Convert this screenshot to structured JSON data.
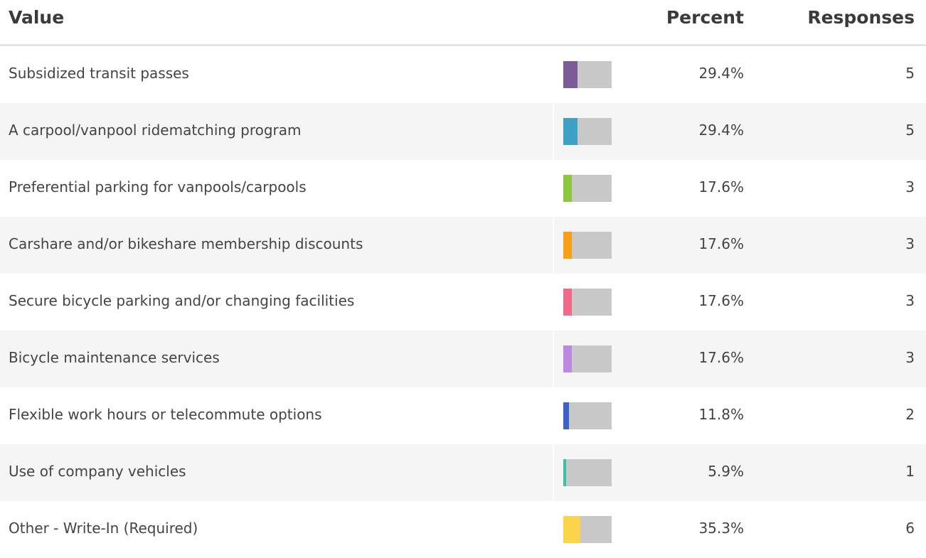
{
  "table": {
    "header": [
      "Value",
      "Percent",
      "Responses"
    ],
    "rows": [
      {
        "label": "Subsidized transit passes",
        "percent": 29.4,
        "percent_label": "29.4%",
        "responses": 5,
        "color": "#7b5c96"
      },
      {
        "label": "A carpool/vanpool ridematching program",
        "percent": 29.4,
        "percent_label": "29.4%",
        "responses": 5,
        "color": "#3ea0c2"
      },
      {
        "label": "Preferential parking for vanpools/carpools",
        "percent": 17.6,
        "percent_label": "17.6%",
        "responses": 3,
        "color": "#8dc63f"
      },
      {
        "label": "Carshare and/or bikeshare membership discounts",
        "percent": 17.6,
        "percent_label": "17.6%",
        "responses": 3,
        "color": "#f6a01a"
      },
      {
        "label": "Secure bicycle parking and/or changing facilities",
        "percent": 17.6,
        "percent_label": "17.6%",
        "responses": 3,
        "color": "#ef6b8a"
      },
      {
        "label": "Bicycle maintenance services",
        "percent": 17.6,
        "percent_label": "17.6%",
        "responses": 3,
        "color": "#b98ae0"
      },
      {
        "label": "Flexible work hours or telecommute options",
        "percent": 11.8,
        "percent_label": "11.8%",
        "responses": 2,
        "color": "#3a62c8"
      },
      {
        "label": "Use of company vehicles",
        "percent": 5.9,
        "percent_label": "5.9%",
        "responses": 1,
        "color": "#3cc1a5"
      },
      {
        "label": "Other - Write-In (Required)",
        "percent": 35.3,
        "percent_label": "35.3%",
        "responses": 6,
        "color": "#fbd44a"
      }
    ]
  }
}
